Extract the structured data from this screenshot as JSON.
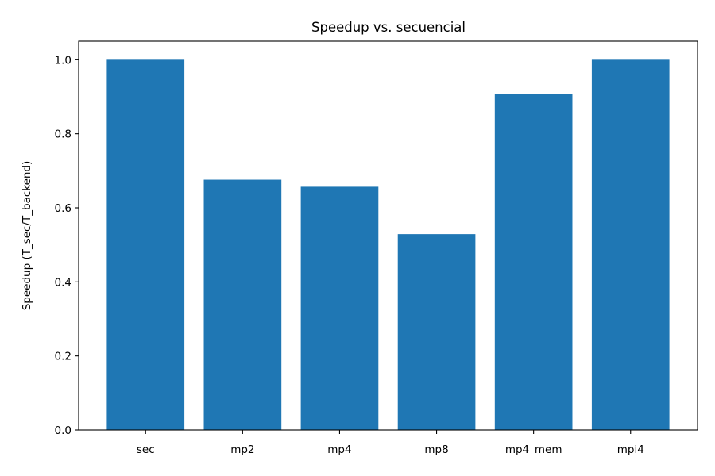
{
  "chart_data": {
    "type": "bar",
    "title": "Speedup vs. secuencial",
    "xlabel": "",
    "ylabel": "Speedup (T_sec/T_backend)",
    "categories": [
      "sec",
      "mp2",
      "mp4",
      "mp8",
      "mp4_mem",
      "mpi4"
    ],
    "values": [
      1.0,
      0.676,
      0.657,
      0.529,
      0.907,
      1.0
    ],
    "ylim": [
      0,
      1.05
    ],
    "yticks": [
      0.0,
      0.2,
      0.4,
      0.6,
      0.8,
      1.0
    ],
    "ytick_labels": [
      "0.0",
      "0.2",
      "0.4",
      "0.6",
      "0.8",
      "1.0"
    ],
    "grid": false,
    "bar_color": "#1f77b4"
  }
}
